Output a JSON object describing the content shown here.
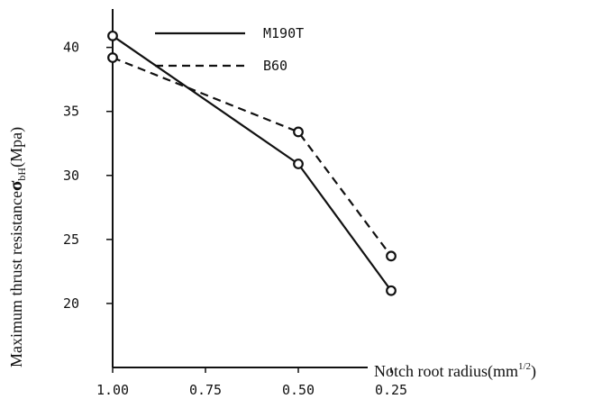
{
  "chart_data": {
    "type": "line",
    "x_axis_reversed": true,
    "xlim": [
      0.0,
      1.0
    ],
    "ylim": [
      15,
      43
    ],
    "x_ticks": [
      {
        "value": 1.0,
        "label": "1.00"
      },
      {
        "value": 0.75,
        "label": "0.75"
      },
      {
        "value": 0.5,
        "label": "0.50"
      },
      {
        "value": 0.25,
        "label": "0.25"
      }
    ],
    "y_ticks": [
      {
        "value": 40,
        "label": "40"
      },
      {
        "value": 35,
        "label": "35"
      },
      {
        "value": 30,
        "label": "30"
      },
      {
        "value": 25,
        "label": "25"
      },
      {
        "value": 20,
        "label": "20"
      }
    ],
    "xlabel": {
      "main": "Notch root radius(mm",
      "sup": "1/2",
      "tail": ")"
    },
    "ylabel": {
      "main": "Maximum thrust resistance",
      "symbol": "σ",
      "sub": "bH",
      "tail": "(Mpa)"
    },
    "grid": false,
    "legend_position": "top",
    "series": [
      {
        "name": "M190T",
        "line_style": "solid",
        "color": "#111111",
        "x": [
          1.0,
          0.5,
          0.25
        ],
        "y": [
          40.9,
          30.9,
          21.0
        ]
      },
      {
        "name": "B60",
        "line_style": "dashed",
        "color": "#111111",
        "x": [
          1.0,
          0.5,
          0.25
        ],
        "y": [
          39.2,
          33.4,
          23.7
        ]
      }
    ]
  }
}
